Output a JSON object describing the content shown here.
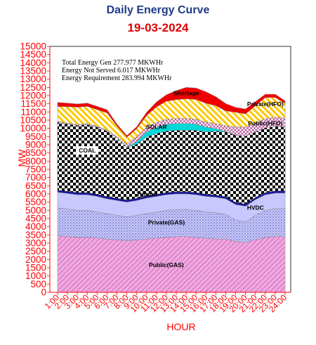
{
  "header": {
    "title": "Daily Energy Curve",
    "date": "19-03-2024"
  },
  "annotations": {
    "total_gen": "Total Energy Gen 277.977 MKWHr",
    "not_served": "Energy Not Served   6.017 MKWHr",
    "requirement": "Energy Requirement     283.994 MKWHr"
  },
  "chart_data": {
    "type": "area",
    "stacked": true,
    "title": "Daily Energy Curve",
    "subtitle": "19-03-2024",
    "xlabel": "HOUR",
    "ylabel": "MW",
    "ylim": [
      0,
      15000
    ],
    "ytick_step": 500,
    "grid": false,
    "x": [
      "1:00",
      "2:00",
      "3:00",
      "4:00",
      "5:00",
      "6:00",
      "7:00",
      "8:00",
      "9:00",
      "10:00",
      "11:00",
      "12:00",
      "13:00",
      "14:00",
      "15:00",
      "16:00",
      "17:00",
      "18:00",
      "19:00",
      "20:00",
      "21:00",
      "22:00",
      "23:00",
      "24:00"
    ],
    "series": [
      {
        "name": "Public(GAS)",
        "color": "#e8a0d8",
        "pattern": "diag",
        "values": [
          3450,
          3400,
          3350,
          3350,
          3300,
          3250,
          3200,
          3150,
          3200,
          3250,
          3300,
          3350,
          3400,
          3400,
          3350,
          3300,
          3250,
          3250,
          3100,
          3050,
          3200,
          3350,
          3400,
          3400
        ]
      },
      {
        "name": "Private(GAS)",
        "color": "#b0b0f0",
        "pattern": "dots",
        "values": [
          1700,
          1680,
          1650,
          1650,
          1600,
          1550,
          1500,
          1450,
          1500,
          1550,
          1600,
          1650,
          1650,
          1650,
          1650,
          1600,
          1600,
          1500,
          1300,
          1250,
          1500,
          1650,
          1700,
          1700
        ]
      },
      {
        "name": "HVDC",
        "color": "#c8c8ff",
        "pattern": "solid",
        "values": [
          950,
          950,
          950,
          950,
          950,
          900,
          900,
          900,
          900,
          950,
          950,
          950,
          950,
          950,
          950,
          950,
          950,
          950,
          950,
          950,
          950,
          950,
          950,
          950
        ]
      },
      {
        "name": "Tripura",
        "color": "#1515a0",
        "pattern": "solid",
        "values": [
          130,
          130,
          130,
          130,
          130,
          130,
          130,
          130,
          130,
          130,
          130,
          130,
          130,
          130,
          130,
          130,
          130,
          130,
          130,
          130,
          130,
          130,
          130,
          130
        ]
      },
      {
        "name": "COAL",
        "color": "#000000",
        "pattern": "checker",
        "values": [
          4150,
          4100,
          4100,
          4150,
          4100,
          4000,
          3700,
          3200,
          3300,
          3600,
          3700,
          3750,
          3750,
          3750,
          3800,
          3800,
          3900,
          3950,
          4100,
          4150,
          4000,
          3950,
          3950,
          3900
        ]
      },
      {
        "name": "SOLAR",
        "color": "#00d8d8",
        "pattern": "solid",
        "values": [
          0,
          0,
          0,
          0,
          0,
          0,
          0,
          30,
          150,
          300,
          380,
          420,
          420,
          420,
          380,
          300,
          150,
          30,
          0,
          0,
          0,
          0,
          0,
          0
        ]
      },
      {
        "name": "Public(HFO)",
        "color": "#b04090",
        "pattern": "cross",
        "values": [
          50,
          60,
          60,
          60,
          60,
          60,
          60,
          200,
          300,
          300,
          300,
          300,
          300,
          300,
          300,
          300,
          300,
          350,
          500,
          550,
          550,
          550,
          550,
          550
        ]
      },
      {
        "name": "Private(HFO)",
        "color": "#ffc800",
        "pattern": "stripe",
        "values": [
          900,
          1000,
          1050,
          1050,
          1000,
          1050,
          650,
          400,
          500,
          700,
          950,
          1100,
          1150,
          1200,
          1200,
          1150,
          1100,
          900,
          900,
          800,
          1050,
          1300,
          1200,
          900
        ]
      },
      {
        "name": "Shortage",
        "color": "#f00000",
        "pattern": "solid",
        "values": [
          250,
          220,
          200,
          200,
          200,
          200,
          120,
          100,
          120,
          200,
          300,
          400,
          550,
          700,
          700,
          700,
          550,
          450,
          300,
          300,
          250,
          200,
          200,
          150
        ]
      }
    ]
  }
}
